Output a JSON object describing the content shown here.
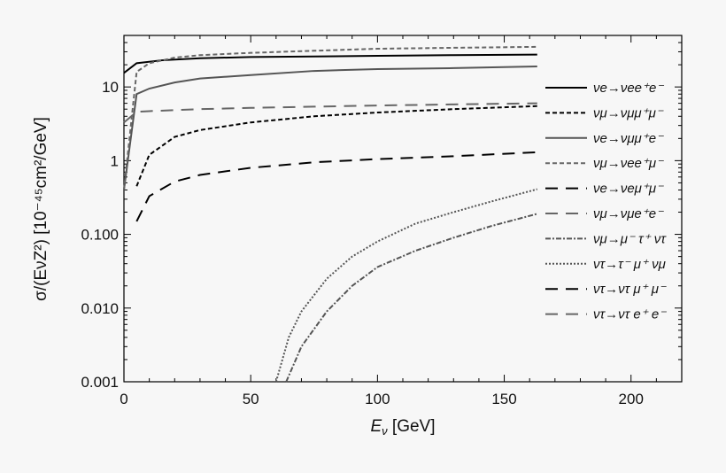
{
  "chart_data": {
    "type": "line",
    "xlabel": "E",
    "xlabel_sub": "ν",
    "xlabel_unit": " [GeV]",
    "ylabel": "σ/(EνZ²) [10⁻⁴⁵cm²/GeV]",
    "xlim": [
      0,
      220
    ],
    "ylim": [
      0.001,
      50
    ],
    "yscale": "log",
    "xticks": [
      0,
      50,
      100,
      150,
      200
    ],
    "yticks": [
      0.001,
      0.01,
      0.1,
      1,
      10
    ],
    "ytick_labels": [
      "0.001",
      "0.010",
      "0.100",
      "1",
      "10"
    ],
    "legend_placement": "right",
    "grid": false,
    "series": [
      {
        "name": "νe→νee⁺e⁻",
        "color": "#000000",
        "dash": "",
        "x": [
          0,
          5,
          15,
          30,
          50,
          80,
          100,
          130,
          163
        ],
        "y": [
          15.5,
          21,
          23,
          24.5,
          25.5,
          26,
          26.5,
          27,
          27.5
        ]
      },
      {
        "name": "νμ→νμμ⁺μ⁻",
        "color": "#000000",
        "dash": "5,3",
        "x": [
          5,
          10,
          20,
          30,
          50,
          75,
          100,
          130,
          163
        ],
        "y": [
          0.45,
          1.2,
          2.1,
          2.6,
          3.3,
          4,
          4.5,
          5,
          5.5
        ]
      },
      {
        "name": "νe→νμμ⁺e⁻",
        "color": "#555555",
        "dash": "",
        "x": [
          0,
          5,
          10,
          20,
          30,
          50,
          75,
          100,
          130,
          163
        ],
        "y": [
          0.4,
          8,
          9.5,
          11.5,
          13,
          14.5,
          16.5,
          17.5,
          18,
          19
        ]
      },
      {
        "name": "νμ→νee⁺μ⁻",
        "color": "#666666",
        "dash": "5,3",
        "x": [
          0,
          5,
          10,
          20,
          30,
          50,
          75,
          100,
          130,
          163
        ],
        "y": [
          0.4,
          16,
          21,
          25,
          27,
          29,
          31,
          33,
          34,
          35
        ]
      },
      {
        "name": "νe→νeμ⁺μ⁻",
        "color": "#000000",
        "dash": "14,9",
        "x": [
          5,
          10,
          20,
          30,
          50,
          75,
          100,
          130,
          163
        ],
        "y": [
          0.15,
          0.33,
          0.52,
          0.64,
          0.8,
          0.95,
          1.05,
          1.15,
          1.3
        ]
      },
      {
        "name": "νμ→νμe⁺e⁻",
        "color": "#666666",
        "dash": "14,9",
        "x": [
          0,
          5,
          10,
          30,
          50,
          75,
          100,
          130,
          163
        ],
        "y": [
          3.3,
          4.6,
          4.7,
          5,
          5.2,
          5.4,
          5.6,
          5.8,
          6
        ]
      },
      {
        "name": "νμ→μ⁻ τ⁺ ντ",
        "color": "#555555",
        "dash": "6,2,2,2",
        "x": [
          64,
          70,
          80,
          90,
          100,
          115,
          130,
          145,
          163
        ],
        "y": [
          0.001,
          0.003,
          0.009,
          0.02,
          0.036,
          0.06,
          0.09,
          0.13,
          0.19
        ]
      },
      {
        "name": "ντ→τ⁻ μ⁺ νμ",
        "color": "#555555",
        "dash": "2,2",
        "x": [
          60,
          65,
          70,
          80,
          90,
          100,
          115,
          130,
          145,
          163
        ],
        "y": [
          0.001,
          0.004,
          0.009,
          0.025,
          0.05,
          0.08,
          0.14,
          0.2,
          0.28,
          0.41
        ]
      },
      {
        "name": "ντ→ντ μ⁺ μ⁻",
        "color": "#000000",
        "dash": "14,9",
        "x": [],
        "y": []
      },
      {
        "name": "ντ→ντ e⁺ e⁻",
        "color": "#666666",
        "dash": "14,9",
        "x": [],
        "y": []
      }
    ]
  }
}
